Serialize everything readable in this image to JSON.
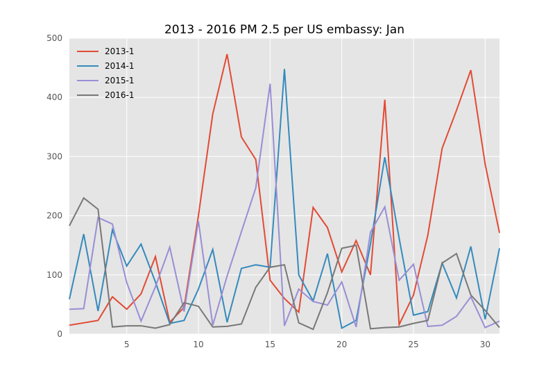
{
  "chart_data": {
    "type": "line",
    "title": "2013 - 2016 PM 2.5 per US embassy: Jan",
    "xlabel": "",
    "ylabel": "",
    "xlim": [
      1,
      31
    ],
    "ylim": [
      0,
      500
    ],
    "grid": true,
    "legend_position": "top-left",
    "x_ticks": [
      5,
      10,
      15,
      20,
      25,
      30
    ],
    "y_ticks": [
      0,
      100,
      200,
      300,
      400,
      500
    ],
    "x": [
      1,
      2,
      3,
      4,
      5,
      6,
      7,
      8,
      9,
      10,
      11,
      12,
      13,
      14,
      15,
      16,
      17,
      18,
      19,
      20,
      21,
      22,
      23,
      24,
      25,
      26,
      27,
      28,
      29,
      30,
      31
    ],
    "series": [
      {
        "name": "2013-1",
        "color": "#e24a33",
        "values": [
          15,
          19,
          23,
          63,
          42,
          68,
          131,
          20,
          45,
          200,
          372,
          473,
          333,
          295,
          91,
          60,
          37,
          214,
          180,
          105,
          158,
          100,
          396,
          16,
          66,
          167,
          314,
          378,
          446,
          287,
          171
        ]
      },
      {
        "name": "2014-1",
        "color": "#348abd",
        "values": [
          59,
          169,
          39,
          176,
          115,
          152,
          88,
          18,
          23,
          76,
          143,
          20,
          111,
          117,
          113,
          448,
          100,
          56,
          136,
          10,
          23,
          152,
          299,
          162,
          32,
          38,
          120,
          61,
          148,
          25,
          145
        ]
      },
      {
        "name": "2015-1",
        "color": "#988ed5",
        "values": [
          42,
          43,
          197,
          186,
          87,
          22,
          80,
          147,
          38,
          191,
          15,
          98,
          173,
          247,
          423,
          14,
          76,
          55,
          49,
          88,
          12,
          172,
          215,
          91,
          118,
          13,
          15,
          30,
          63,
          11,
          22
        ]
      },
      {
        "name": "2016-1",
        "color": "#777777",
        "values": [
          183,
          230,
          211,
          12,
          14,
          14,
          10,
          16,
          53,
          47,
          12,
          13,
          17,
          79,
          113,
          117,
          19,
          8,
          70,
          145,
          150,
          9,
          11,
          12,
          18,
          23,
          120,
          136,
          66,
          40,
          11
        ]
      }
    ]
  }
}
